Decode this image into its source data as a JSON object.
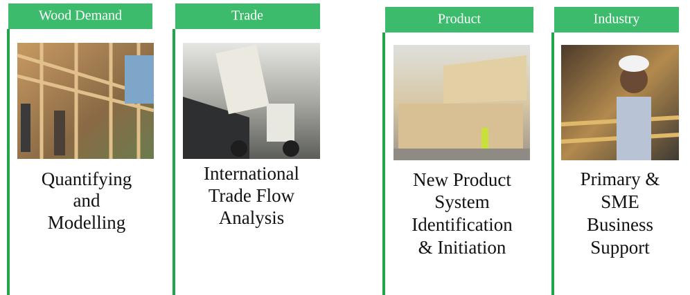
{
  "cards": [
    {
      "tab": "Wood Demand",
      "lines": [
        "Quantifying",
        "and",
        "Modelling"
      ]
    },
    {
      "tab": "Trade",
      "lines": [
        "International",
        "Trade Flow",
        "Analysis"
      ]
    },
    {
      "tab": "Product",
      "lines": [
        "New Product",
        "System",
        "Identification",
        "& Initiation"
      ]
    },
    {
      "tab": "Industry",
      "lines": [
        "Primary &",
        "SME",
        "Business",
        "Support"
      ]
    }
  ]
}
